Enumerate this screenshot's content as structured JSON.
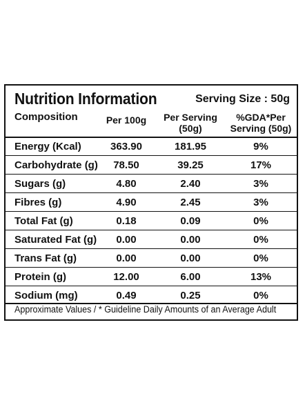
{
  "label": {
    "title": "Nutrition Information",
    "serving_size": "Serving Size : 50g",
    "columns": {
      "composition": "Composition",
      "per_100g": "Per 100g",
      "per_serving_line1": "Per Serving",
      "per_serving_line2": "(50g)",
      "gda_line1": "%GDA*Per",
      "gda_line2": "Serving (50g)"
    },
    "rows": [
      {
        "name": "Energy (Kcal)",
        "per_100g": "363.90",
        "per_serving": "181.95",
        "gda": "9%"
      },
      {
        "name": "Carbohydrate (g)",
        "per_100g": "78.50",
        "per_serving": "39.25",
        "gda": "17%"
      },
      {
        "name": "Sugars (g)",
        "per_100g": "4.80",
        "per_serving": "2.40",
        "gda": "3%"
      },
      {
        "name": "Fibres (g)",
        "per_100g": "4.90",
        "per_serving": "2.45",
        "gda": "3%"
      },
      {
        "name": "Total Fat (g)",
        "per_100g": "0.18",
        "per_serving": "0.09",
        "gda": "0%"
      },
      {
        "name": "Saturated Fat (g)",
        "per_100g": "0.00",
        "per_serving": "0.00",
        "gda": "0%"
      },
      {
        "name": "Trans Fat (g)",
        "per_100g": "0.00",
        "per_serving": "0.00",
        "gda": "0%"
      },
      {
        "name": "Protein (g)",
        "per_100g": "12.00",
        "per_serving": "6.00",
        "gda": "13%"
      },
      {
        "name": "Sodium (mg)",
        "per_100g": "0.49",
        "per_serving": "0.25",
        "gda": "0%"
      }
    ],
    "footnote": "Approximate Values / * Guideline Daily Amounts of an Average Adult"
  }
}
